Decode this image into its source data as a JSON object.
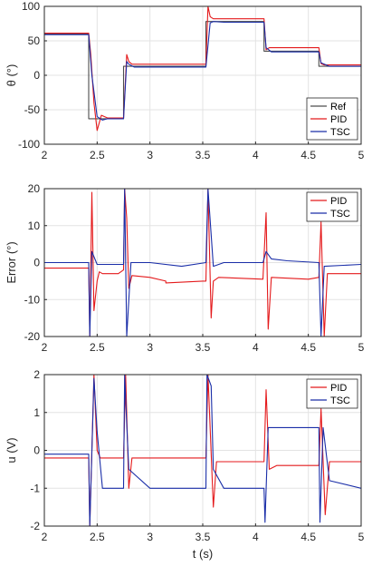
{
  "colors": {
    "ref": "#4d4d4d",
    "pid": "#e41a1c",
    "tsc": "#1a2ea8"
  },
  "chart_data": [
    {
      "type": "line",
      "title": "",
      "xlabel": "",
      "ylabel": "θ (°)",
      "xlim": [
        2,
        5
      ],
      "ylim": [
        -100,
        100
      ],
      "xticks": [
        "2",
        "2.5",
        "3",
        "3.5",
        "4",
        "4.5",
        "5"
      ],
      "yticks": [
        "100",
        "50",
        "0",
        "-50",
        "-100"
      ],
      "grid": true,
      "legend": "bottom-right",
      "series": [
        {
          "name": "Ref",
          "x": [
            2.0,
            2.42,
            2.42,
            2.75,
            2.75,
            3.53,
            3.53,
            4.08,
            4.08,
            4.6,
            4.6,
            5.0
          ],
          "y": [
            60,
            60,
            -63,
            -63,
            13,
            13,
            78,
            78,
            35,
            35,
            13,
            13
          ]
        },
        {
          "name": "PID",
          "x": [
            2.0,
            2.42,
            2.44,
            2.47,
            2.5,
            2.54,
            2.6,
            2.7,
            2.75,
            2.78,
            2.8,
            2.83,
            2.87,
            3.0,
            3.53,
            3.55,
            3.57,
            3.6,
            3.65,
            3.8,
            4.08,
            4.1,
            4.13,
            4.17,
            4.25,
            4.6,
            4.62,
            4.65,
            4.7,
            4.8,
            5.0
          ],
          "y": [
            61,
            61,
            30,
            -40,
            -80,
            -58,
            -62,
            -62,
            -62,
            30,
            20,
            16,
            16,
            16,
            16,
            100,
            85,
            82,
            82,
            82,
            82,
            37,
            40,
            40,
            40,
            40,
            17,
            15,
            15,
            15,
            15
          ]
        },
        {
          "name": "TSC",
          "x": [
            2.0,
            2.42,
            2.45,
            2.5,
            2.55,
            2.6,
            2.75,
            2.78,
            2.8,
            2.85,
            3.0,
            3.53,
            3.57,
            3.6,
            3.7,
            4.08,
            4.1,
            4.15,
            4.3,
            4.6,
            4.62,
            4.7,
            5.0
          ],
          "y": [
            59,
            59,
            0,
            -60,
            -65,
            -63,
            -63,
            20,
            16,
            12,
            12,
            12,
            76,
            78,
            77,
            77,
            40,
            34,
            34,
            34,
            18,
            13,
            13
          ]
        }
      ]
    },
    {
      "type": "line",
      "title": "",
      "xlabel": "",
      "ylabel": "Error (°)",
      "xlim": [
        2,
        5
      ],
      "ylim": [
        -20,
        20
      ],
      "xticks": [
        "2",
        "2.5",
        "3",
        "3.5",
        "4",
        "4.5",
        "5"
      ],
      "yticks": [
        "20",
        "10",
        "0",
        "-10",
        "-20"
      ],
      "grid": true,
      "legend": "top-right",
      "series": [
        {
          "name": "PID",
          "x": [
            2.0,
            2.42,
            2.43,
            2.45,
            2.47,
            2.5,
            2.52,
            2.55,
            2.7,
            2.75,
            2.76,
            2.78,
            2.8,
            2.83,
            3.0,
            3.15,
            3.15,
            3.5,
            3.53,
            3.55,
            3.58,
            3.6,
            3.65,
            4.07,
            4.1,
            4.12,
            4.15,
            4.5,
            4.6,
            4.62,
            4.65,
            4.68,
            5.0
          ],
          "y": [
            -1.5,
            -1.5,
            -20,
            19,
            -13,
            -5,
            -2.5,
            -3,
            -3,
            -2,
            20,
            12,
            -7,
            -3.5,
            -4,
            -5,
            -5.5,
            -5,
            -5,
            20,
            -15,
            -5,
            -4,
            -4.5,
            13.5,
            -18,
            -4,
            -4.5,
            -4,
            11,
            -20,
            -3,
            -3
          ]
        },
        {
          "name": "TSC",
          "x": [
            2.0,
            2.42,
            2.43,
            2.45,
            2.5,
            2.6,
            2.75,
            2.76,
            2.78,
            2.82,
            3.0,
            3.3,
            3.53,
            3.55,
            3.6,
            3.7,
            4.07,
            4.1,
            4.15,
            4.3,
            4.6,
            4.62,
            4.65,
            5.0
          ],
          "y": [
            0,
            0,
            -20,
            3,
            -0.5,
            -0.5,
            -0.5,
            20,
            -20,
            0,
            0,
            -1,
            0,
            20,
            -1,
            0,
            0,
            3,
            1,
            0.5,
            0,
            -20,
            -1,
            -0.5
          ]
        }
      ]
    },
    {
      "type": "line",
      "title": "",
      "xlabel": "t (s)",
      "ylabel": "u (V)",
      "xlim": [
        2,
        5
      ],
      "ylim": [
        -2,
        2
      ],
      "xticks": [
        "2",
        "2.5",
        "3",
        "3.5",
        "4",
        "4.5",
        "5"
      ],
      "yticks": [
        "2",
        "1",
        "0",
        "-1",
        "-2"
      ],
      "grid": true,
      "legend": "top-right",
      "series": [
        {
          "name": "PID",
          "x": [
            2.0,
            2.42,
            2.43,
            2.47,
            2.5,
            2.53,
            2.6,
            2.75,
            2.77,
            2.8,
            2.83,
            3.0,
            3.53,
            3.55,
            3.6,
            3.63,
            3.7,
            4.08,
            4.1,
            4.13,
            4.2,
            4.6,
            4.62,
            4.66,
            4.7,
            5.0
          ],
          "y": [
            -0.2,
            -0.2,
            -2,
            2,
            0,
            -0.2,
            -0.2,
            -0.2,
            2,
            -1,
            -0.2,
            -0.2,
            -0.2,
            2,
            -1.5,
            -0.3,
            -0.3,
            -0.3,
            1.6,
            -0.5,
            -0.4,
            -0.4,
            1.1,
            -1.7,
            -0.3,
            -0.3
          ]
        },
        {
          "name": "TSC",
          "x": [
            2.0,
            2.42,
            2.43,
            2.47,
            2.5,
            2.55,
            2.75,
            2.76,
            2.78,
            2.8,
            3.0,
            3.53,
            3.54,
            3.58,
            3.6,
            3.7,
            4.08,
            4.09,
            4.12,
            4.5,
            4.6,
            4.61,
            4.64,
            4.7,
            5.0
          ],
          "y": [
            -0.1,
            -0.1,
            -2,
            1.9,
            0.5,
            -1,
            -1,
            2,
            0.7,
            -0.5,
            -1,
            -1,
            2,
            1.7,
            -0.5,
            -1,
            -1,
            -1.9,
            0.6,
            0.6,
            0.6,
            -1.9,
            0.6,
            -0.8,
            -1
          ]
        }
      ]
    }
  ]
}
